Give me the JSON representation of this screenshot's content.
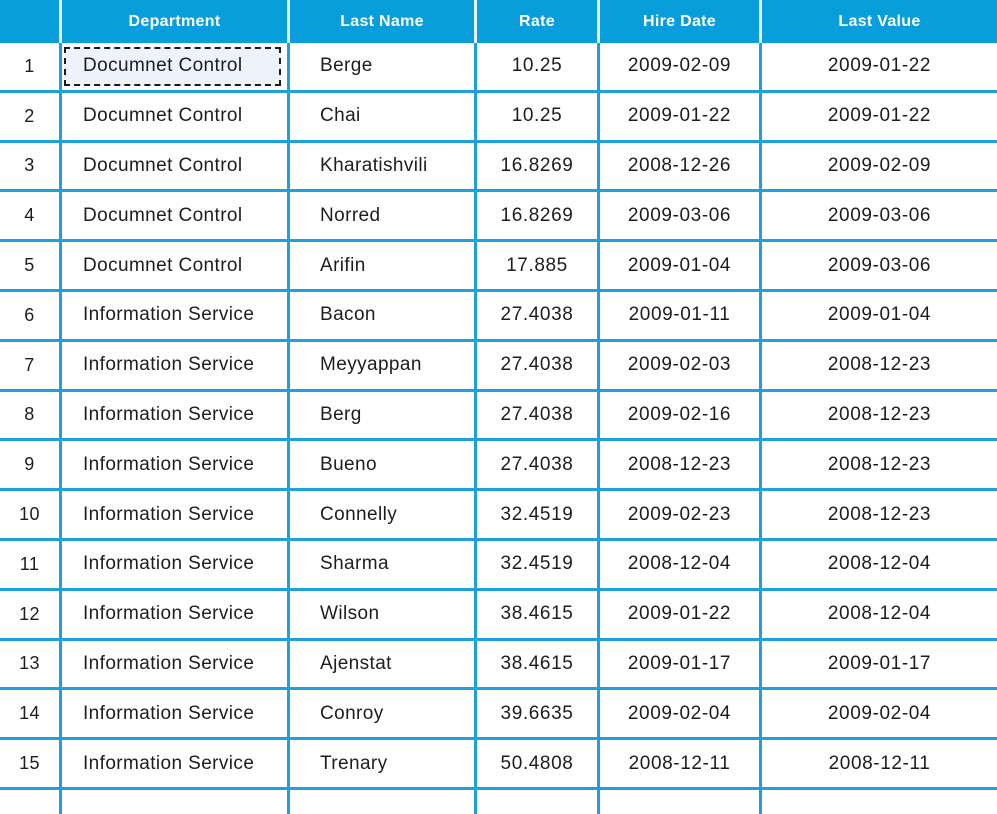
{
  "colors": {
    "header_bg": "#089EDB",
    "grid_line": "#1FA0DA",
    "header_divider": "#E4F4FC",
    "text": "#1D1D1F",
    "selection_fill": "#EDF3FA",
    "selection_border": "#1C1C1C"
  },
  "table": {
    "columns": [
      {
        "key": "num",
        "label": ""
      },
      {
        "key": "department",
        "label": "Department"
      },
      {
        "key": "last_name",
        "label": "Last Name"
      },
      {
        "key": "rate",
        "label": "Rate"
      },
      {
        "key": "hire_date",
        "label": "Hire Date"
      },
      {
        "key": "last_value",
        "label": "Last Value"
      }
    ],
    "selection": {
      "row": "1",
      "column": "department",
      "value": "Documnet Control"
    },
    "rows": [
      {
        "num": "1",
        "department": "Documnet Control",
        "last_name": "Berge",
        "rate": "10.25",
        "hire_date": "2009-02-09",
        "last_value": "2009-01-22",
        "selected_column": "department"
      },
      {
        "num": "2",
        "department": "Documnet Control",
        "last_name": "Chai",
        "rate": "10.25",
        "hire_date": "2009-01-22",
        "last_value": "2009-01-22"
      },
      {
        "num": "3",
        "department": "Documnet Control",
        "last_name": "Kharatishvili",
        "rate": "16.8269",
        "hire_date": "2008-12-26",
        "last_value": "2009-02-09"
      },
      {
        "num": "4",
        "department": "Documnet Control",
        "last_name": "Norred",
        "rate": "16.8269",
        "hire_date": "2009-03-06",
        "last_value": "2009-03-06"
      },
      {
        "num": "5",
        "department": "Documnet Control",
        "last_name": "Arifin",
        "rate": "17.885",
        "hire_date": "2009-01-04",
        "last_value": "2009-03-06"
      },
      {
        "num": "6",
        "department": "Information Service",
        "last_name": "Bacon",
        "rate": "27.4038",
        "hire_date": "2009-01-11",
        "last_value": "2009-01-04"
      },
      {
        "num": "7",
        "department": "Information Service",
        "last_name": "Meyyappan",
        "rate": "27.4038",
        "hire_date": "2009-02-03",
        "last_value": "2008-12-23"
      },
      {
        "num": "8",
        "department": "Information Service",
        "last_name": "Berg",
        "rate": "27.4038",
        "hire_date": "2009-02-16",
        "last_value": "2008-12-23"
      },
      {
        "num": "9",
        "department": "Information Service",
        "last_name": "Bueno",
        "rate": "27.4038",
        "hire_date": "2008-12-23",
        "last_value": "2008-12-23"
      },
      {
        "num": "10",
        "department": "Information Service",
        "last_name": "Connelly",
        "rate": "32.4519",
        "hire_date": "2009-02-23",
        "last_value": "2008-12-23"
      },
      {
        "num": "11",
        "department": "Information Service",
        "last_name": "Sharma",
        "rate": "32.4519",
        "hire_date": "2008-12-04",
        "last_value": "2008-12-04"
      },
      {
        "num": "12",
        "department": "Information Service",
        "last_name": "Wilson",
        "rate": "38.4615",
        "hire_date": "2009-01-22",
        "last_value": "2008-12-04"
      },
      {
        "num": "13",
        "department": "Information Service",
        "last_name": "Ajenstat",
        "rate": "38.4615",
        "hire_date": "2009-01-17",
        "last_value": "2009-01-17"
      },
      {
        "num": "14",
        "department": "Information Service",
        "last_name": "Conroy",
        "rate": "39.6635",
        "hire_date": "2009-02-04",
        "last_value": "2009-02-04"
      },
      {
        "num": "15",
        "department": "Information Service",
        "last_name": "Trenary",
        "rate": "50.4808",
        "hire_date": "2008-12-11",
        "last_value": "2008-12-11"
      },
      {
        "num": "",
        "department": "",
        "last_name": "",
        "rate": "",
        "hire_date": "",
        "last_value": "",
        "partial": true
      }
    ]
  }
}
